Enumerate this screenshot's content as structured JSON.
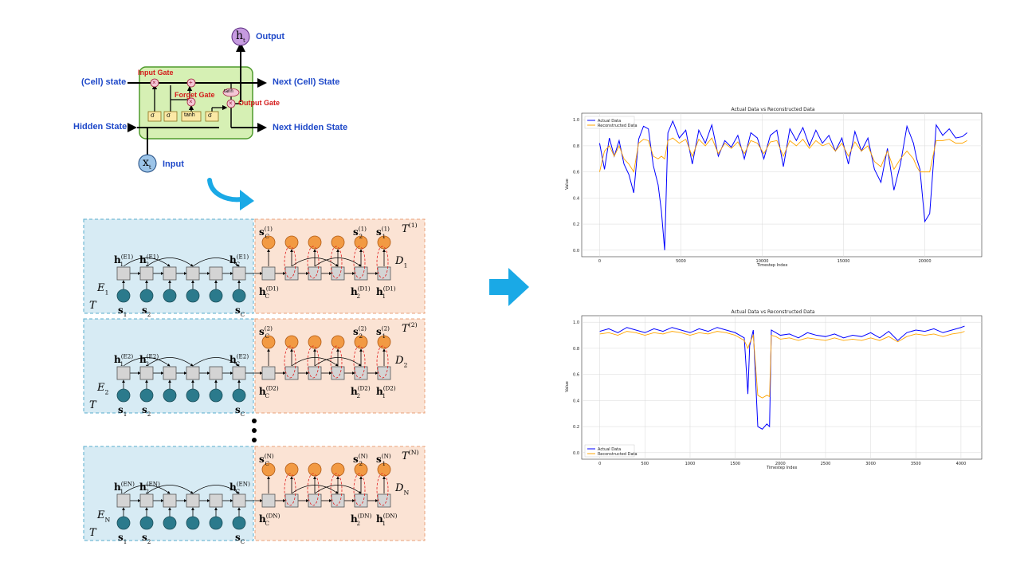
{
  "lstm_cell": {
    "output_symbol": "h",
    "output_sub": "t",
    "input_symbol": "x",
    "input_sub": "t",
    "output_label": "Output",
    "input_label": "Input",
    "cell_state_label": "(Cell) state",
    "hidden_state_label": "Hidden State",
    "next_cell_state_label": "Next (Cell) State",
    "next_hidden_state_label": "Next Hidden State",
    "input_gate": "Input Gate",
    "forget_gate": "Forget Gate",
    "output_gate": "Output Gate",
    "sigma": "σ",
    "tanh": "tanh",
    "mult": "×",
    "plus": "+",
    "colors": {
      "cell_fill": "#d6f0b4",
      "cell_border": "#4e9a2b",
      "gate_box": "#fbe9a6",
      "output_node": "#c69be0",
      "input_node": "#9cc4e8",
      "label": "#1f49c9",
      "gate_label": "#d41a1a"
    }
  },
  "encoder_decoder": {
    "blocks": [
      {
        "encoder": "E_1",
        "decoder": "D_1",
        "target": "T^(1)",
        "h1": "h_1^(E_1)",
        "h2": "h_2^(E_1)",
        "hC": "h_C^(E_1)",
        "dhC": "h_C^(D_1)",
        "dh2": "h_2^(D_1)",
        "dh1": "h_1^(D_1)",
        "sC": "s_C^(1)",
        "s2": "s_2^(1)",
        "s1": "s_1^(1)"
      },
      {
        "encoder": "E_2",
        "decoder": "D_2",
        "target": "T^(2)",
        "h1": "h_1^(E_2)",
        "h2": "h_2^(E_2)",
        "hC": "h_C^(E_2)",
        "dhC": "h_C^(D_2)",
        "dh2": "h_2^(D_2)",
        "dh1": "h_1^(D_2)",
        "sC": "s_C^(2)",
        "s2": "s_2^(2)",
        "s1": "s_1^(2)"
      },
      {
        "encoder": "E_N",
        "decoder": "D_N",
        "target": "T^(N)",
        "h1": "h_1^(E_N)",
        "h2": "h_2^(E_N)",
        "hC": "h_C^(E_N)",
        "dhC": "h_C^(D_N)",
        "dh2": "h_2^(D_N)",
        "dh1": "h_1^(D_N)",
        "sC": "s_C^(N)",
        "s2": "s_2^(N)",
        "s1": "s_1^(N)"
      }
    ],
    "input_labels": [
      "s_1",
      "s_2",
      "s_C"
    ],
    "T_symbol": "T",
    "colors": {
      "encoder_bg": "#d7ebf4",
      "decoder_bg": "#fbe3d4",
      "node_teal": "#2b7a8c",
      "node_orange": "#f29a43",
      "cell_gray": "#d4d4d4",
      "arrow_blue": "#1aa9e6",
      "loop_red": "#e02020"
    }
  },
  "chart_data": [
    {
      "type": "line",
      "title": "Actual Data vs Reconstructed Data",
      "xlabel": "Timestep Index",
      "ylabel": "Value",
      "xlim": [
        -1100,
        23500
      ],
      "ylim": [
        -0.05,
        1.05
      ],
      "xticks": [
        0,
        5000,
        10000,
        15000,
        20000
      ],
      "yticks": [
        0.0,
        0.2,
        0.4,
        0.6,
        0.8,
        1.0
      ],
      "grid": true,
      "legend_position": "upper left",
      "series": [
        {
          "name": "Actual Data",
          "color": "#0000ff",
          "x": [
            0,
            300,
            600,
            900,
            1200,
            1500,
            1800,
            2100,
            2400,
            2700,
            3000,
            3300,
            3600,
            3800,
            4000,
            4200,
            4500,
            4900,
            5300,
            5700,
            6100,
            6500,
            6900,
            7300,
            7700,
            8100,
            8500,
            8900,
            9300,
            9700,
            10100,
            10500,
            10900,
            11300,
            11700,
            12100,
            12500,
            12900,
            13300,
            13700,
            14100,
            14500,
            14900,
            15300,
            15700,
            16100,
            16500,
            16900,
            17300,
            17700,
            18100,
            18500,
            18900,
            19300,
            19500,
            19700,
            20000,
            20300,
            20700,
            21100,
            21500,
            21900,
            22300,
            22600
          ],
          "y": [
            0.82,
            0.62,
            0.86,
            0.72,
            0.84,
            0.66,
            0.58,
            0.44,
            0.85,
            0.95,
            0.93,
            0.65,
            0.5,
            0.3,
            0.0,
            0.9,
            0.99,
            0.86,
            0.92,
            0.66,
            0.92,
            0.82,
            0.96,
            0.72,
            0.84,
            0.79,
            0.88,
            0.7,
            0.9,
            0.86,
            0.7,
            0.88,
            0.92,
            0.64,
            0.93,
            0.84,
            0.94,
            0.8,
            0.92,
            0.82,
            0.88,
            0.76,
            0.86,
            0.66,
            0.91,
            0.76,
            0.86,
            0.62,
            0.52,
            0.78,
            0.46,
            0.66,
            0.95,
            0.82,
            0.7,
            0.62,
            0.22,
            0.28,
            0.96,
            0.88,
            0.93,
            0.86,
            0.87,
            0.9
          ]
        },
        {
          "name": "Reconstructed Data",
          "color": "#ffa500",
          "x": [
            0,
            300,
            600,
            900,
            1200,
            1500,
            1800,
            2100,
            2400,
            2700,
            3000,
            3300,
            3600,
            3800,
            4000,
            4200,
            4500,
            4900,
            5300,
            5700,
            6100,
            6500,
            6900,
            7300,
            7700,
            8100,
            8500,
            8900,
            9300,
            9700,
            10100,
            10500,
            10900,
            11300,
            11700,
            12100,
            12500,
            12900,
            13300,
            13700,
            14100,
            14500,
            14900,
            15300,
            15700,
            16100,
            16500,
            16900,
            17300,
            17700,
            18100,
            18500,
            18900,
            19300,
            19500,
            19700,
            20000,
            20300,
            20700,
            21100,
            21500,
            21900,
            22300,
            22600
          ],
          "y": [
            0.6,
            0.76,
            0.8,
            0.72,
            0.8,
            0.7,
            0.66,
            0.6,
            0.82,
            0.85,
            0.84,
            0.72,
            0.7,
            0.72,
            0.7,
            0.84,
            0.86,
            0.82,
            0.85,
            0.72,
            0.85,
            0.8,
            0.86,
            0.74,
            0.82,
            0.78,
            0.83,
            0.74,
            0.84,
            0.82,
            0.74,
            0.83,
            0.84,
            0.72,
            0.84,
            0.8,
            0.85,
            0.78,
            0.84,
            0.8,
            0.82,
            0.76,
            0.82,
            0.72,
            0.83,
            0.76,
            0.8,
            0.68,
            0.64,
            0.76,
            0.62,
            0.7,
            0.76,
            0.7,
            0.64,
            0.6,
            0.6,
            0.6,
            0.84,
            0.84,
            0.85,
            0.82,
            0.82,
            0.84
          ]
        }
      ]
    },
    {
      "type": "line",
      "title": "Actual Data vs Reconstructed Data",
      "xlabel": "Timestep Index",
      "ylabel": "Value",
      "xlim": [
        -200,
        4230
      ],
      "ylim": [
        -0.05,
        1.05
      ],
      "xticks": [
        0,
        500,
        1000,
        1500,
        2000,
        2500,
        3000,
        3500,
        4000
      ],
      "yticks": [
        0.0,
        0.2,
        0.4,
        0.6,
        0.8,
        1.0
      ],
      "grid": true,
      "legend_position": "lower left",
      "series": [
        {
          "name": "Actual Data",
          "color": "#0000ff",
          "x": [
            0,
            100,
            200,
            300,
            400,
            500,
            600,
            700,
            800,
            900,
            1000,
            1100,
            1200,
            1300,
            1400,
            1500,
            1600,
            1640,
            1660,
            1700,
            1750,
            1800,
            1850,
            1880,
            1900,
            1950,
            2000,
            2100,
            2200,
            2300,
            2400,
            2500,
            2600,
            2700,
            2800,
            2900,
            3000,
            3100,
            3200,
            3300,
            3400,
            3500,
            3600,
            3700,
            3800,
            3900,
            4000,
            4040
          ],
          "y": [
            0.93,
            0.95,
            0.92,
            0.96,
            0.94,
            0.92,
            0.95,
            0.93,
            0.96,
            0.94,
            0.92,
            0.95,
            0.93,
            0.96,
            0.94,
            0.92,
            0.88,
            0.45,
            0.82,
            0.94,
            0.2,
            0.18,
            0.22,
            0.2,
            0.94,
            0.92,
            0.9,
            0.91,
            0.88,
            0.92,
            0.9,
            0.89,
            0.91,
            0.88,
            0.9,
            0.89,
            0.92,
            0.88,
            0.93,
            0.86,
            0.92,
            0.94,
            0.93,
            0.95,
            0.92,
            0.94,
            0.96,
            0.97
          ]
        },
        {
          "name": "Reconstructed Data",
          "color": "#ffa500",
          "x": [
            0,
            100,
            200,
            300,
            400,
            500,
            600,
            700,
            800,
            900,
            1000,
            1100,
            1200,
            1300,
            1400,
            1500,
            1600,
            1640,
            1660,
            1700,
            1750,
            1800,
            1850,
            1880,
            1900,
            1950,
            2000,
            2100,
            2200,
            2300,
            2400,
            2500,
            2600,
            2700,
            2800,
            2900,
            3000,
            3100,
            3200,
            3300,
            3400,
            3500,
            3600,
            3700,
            3800,
            3900,
            4000,
            4040
          ],
          "y": [
            0.91,
            0.92,
            0.9,
            0.93,
            0.92,
            0.9,
            0.92,
            0.91,
            0.93,
            0.92,
            0.9,
            0.92,
            0.91,
            0.93,
            0.92,
            0.9,
            0.86,
            0.8,
            0.84,
            0.9,
            0.44,
            0.42,
            0.44,
            0.43,
            0.9,
            0.89,
            0.87,
            0.88,
            0.86,
            0.88,
            0.87,
            0.86,
            0.88,
            0.86,
            0.87,
            0.86,
            0.88,
            0.86,
            0.89,
            0.85,
            0.89,
            0.91,
            0.9,
            0.91,
            0.89,
            0.91,
            0.92,
            0.93
          ]
        }
      ]
    }
  ]
}
